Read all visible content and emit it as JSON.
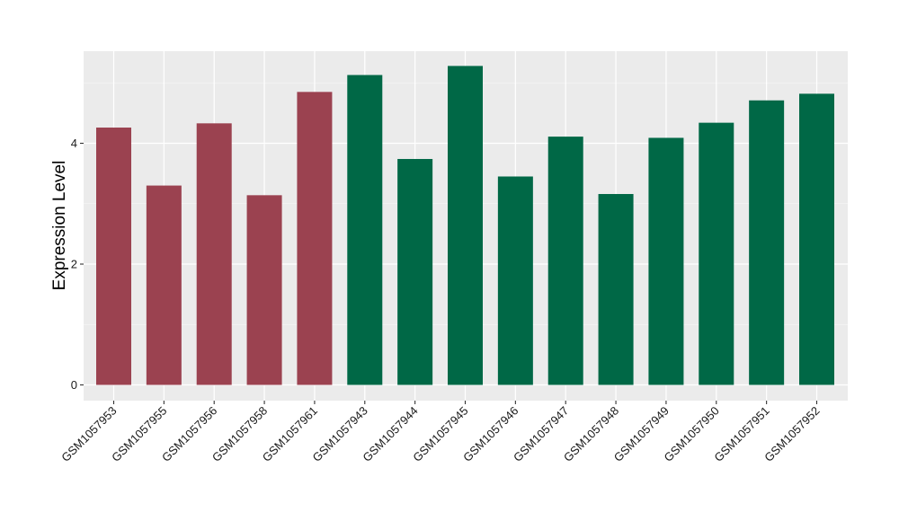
{
  "chart_data": {
    "type": "bar",
    "title": "",
    "xlabel": "",
    "ylabel": "Expression Level",
    "ylim": [
      0,
      5.5
    ],
    "yticks": [
      0,
      2,
      4
    ],
    "grid": true,
    "legend": "none",
    "panel_background": "#ebebeb",
    "gridline_color": "#ffffff",
    "categories": [
      "GSM1057953",
      "GSM1057955",
      "GSM1057956",
      "GSM1057958",
      "GSM1057961",
      "GSM1057943",
      "GSM1057944",
      "GSM1057945",
      "GSM1057946",
      "GSM1057947",
      "GSM1057948",
      "GSM1057949",
      "GSM1057950",
      "GSM1057951",
      "GSM1057952"
    ],
    "values": [
      4.26,
      3.3,
      4.33,
      3.14,
      4.85,
      5.13,
      3.74,
      5.28,
      3.45,
      4.11,
      3.16,
      4.09,
      4.34,
      4.71,
      4.82
    ],
    "bar_colors": [
      "#9b4250",
      "#9b4250",
      "#9b4250",
      "#9b4250",
      "#9b4250",
      "#006846",
      "#006846",
      "#006846",
      "#006846",
      "#006846",
      "#006846",
      "#006846",
      "#006846",
      "#006846",
      "#006846"
    ]
  }
}
